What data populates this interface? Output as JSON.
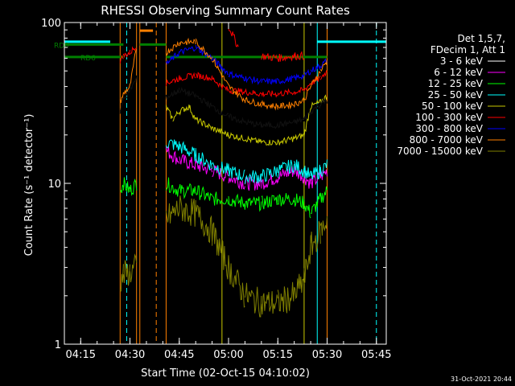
{
  "chart_data": {
    "type": "line",
    "title": "RHESSI Observing Summary Count Rates",
    "xlabel": "Start Time (02-Oct-15 04:10:02)",
    "ylabel": "Count Rate (s⁻¹ detector⁻¹)",
    "y_scale": "log",
    "ylim": [
      1,
      100
    ],
    "xlim": [
      "04:10:02",
      "05:48:00"
    ],
    "x_ticks": [
      "04:15",
      "04:30",
      "04:45",
      "05:00",
      "05:15",
      "05:30",
      "05:45"
    ],
    "y_ticks": [
      "1",
      "10",
      "100"
    ],
    "grid": false,
    "legend_position": "right",
    "legend_header": [
      "Det 1,5,7,",
      "FDecim 1, Att 1"
    ],
    "timestamp": "31-Oct-2021 20:44",
    "markers": [
      {
        "label": "RD0",
        "color": "#007f00",
        "y": 73
      },
      {
        "label": "RD6",
        "color": "#007f00",
        "y": 61
      },
      {
        "label": "",
        "color": "#00ffff",
        "y": 76
      },
      {
        "label": "",
        "color": "#ff8000",
        "y": 89
      }
    ],
    "series": [
      {
        "name": "3 - 6 keV",
        "color": "#000000",
        "x": [
          "04:27",
          "04:28",
          "04:30",
          "04:32",
          "04:41",
          "04:45",
          "04:50",
          "04:55",
          "05:00",
          "05:05",
          "05:10",
          "05:15",
          "05:20",
          "05:23",
          "05:25",
          "05:28",
          "05:30"
        ],
        "y": [
          28,
          33,
          38,
          45,
          34,
          38,
          35,
          30,
          26,
          24,
          23,
          23,
          24,
          25,
          28,
          31,
          33
        ]
      },
      {
        "name": "6 - 12 keV",
        "color": "#ff00ff",
        "x": [
          "04:41",
          "04:45",
          "04:50",
          "04:55",
          "05:00",
          "05:05",
          "05:10",
          "05:15",
          "05:20",
          "05:23",
          "05:25",
          "05:28",
          "05:30"
        ],
        "y": [
          16,
          14,
          13,
          12,
          11,
          10,
          10,
          11,
          12,
          11,
          10,
          11,
          12
        ]
      },
      {
        "name": "12 - 25 keV",
        "color": "#00ff00",
        "x": [
          "04:27",
          "04:28",
          "04:30",
          "04:32",
          "04:41",
          "04:45",
          "04:50",
          "04:55",
          "05:00",
          "05:05",
          "05:10",
          "05:15",
          "05:20",
          "05:23",
          "05:25",
          "05:28",
          "05:30"
        ],
        "y": [
          9,
          10,
          9,
          10,
          10,
          9,
          9,
          8,
          8,
          7.5,
          7.5,
          8,
          8,
          7.5,
          6.5,
          8,
          9
        ]
      },
      {
        "name": "25 - 50 keV",
        "color": "#00ffff",
        "x": [
          "04:41",
          "04:45",
          "04:50",
          "04:55",
          "05:00",
          "05:05",
          "05:10",
          "05:15",
          "05:20",
          "05:23",
          "05:25",
          "05:28",
          "05:30"
        ],
        "y": [
          18,
          17,
          15,
          13,
          12,
          11,
          11,
          12,
          13,
          12,
          11,
          12,
          13
        ]
      },
      {
        "name": "50 - 100 keV",
        "color": "#c8c800",
        "x": [
          "04:41",
          "04:43",
          "04:45",
          "04:48",
          "04:50",
          "04:55",
          "05:00",
          "05:05",
          "05:10",
          "05:15",
          "05:20",
          "05:23",
          "05:25",
          "05:28",
          "05:30"
        ],
        "y": [
          30,
          25,
          28,
          30,
          25,
          22,
          20,
          19,
          18,
          18,
          19,
          20,
          30,
          32,
          35
        ]
      },
      {
        "name": "100 - 300 keV",
        "color": "#ff0000",
        "x": [
          "04:27",
          "04:28",
          "04:30",
          "04:32",
          "04:41",
          "04:45",
          "04:50",
          "04:55",
          "04:58",
          "05:00",
          "05:05",
          "05:10",
          "05:15",
          "05:20",
          "05:23",
          "05:25",
          "05:28",
          "05:30"
        ],
        "y": [
          58,
          62,
          65,
          72,
          42,
          45,
          47,
          45,
          40,
          38,
          37,
          36,
          36,
          37,
          38,
          42,
          45,
          50
        ],
        "segments_high": {
          "x": [
            "05:00",
            "05:03",
            "05:10",
            "05:15",
            "05:20",
            "05:23"
          ],
          "y": [
            95,
            70,
            62,
            60,
            62,
            62
          ]
        }
      },
      {
        "name": "300 - 800 keV",
        "color": "#0000ff",
        "x": [
          "04:41",
          "04:45",
          "04:50",
          "04:55",
          "05:00",
          "05:05",
          "05:10",
          "05:15",
          "05:20",
          "05:23",
          "05:25",
          "05:28",
          "05:30"
        ],
        "y": [
          55,
          65,
          70,
          60,
          48,
          45,
          43,
          43,
          45,
          47,
          50,
          54,
          58
        ]
      },
      {
        "name": "800 - 7000 keV",
        "color": "#ff8000",
        "x": [
          "04:27",
          "04:28",
          "04:30",
          "04:32",
          "04:41",
          "04:45",
          "04:50",
          "04:55",
          "05:00",
          "05:05",
          "05:10",
          "05:15",
          "05:20",
          "05:23",
          "05:25",
          "05:28",
          "05:30"
        ],
        "y": [
          32,
          36,
          40,
          70,
          65,
          75,
          76,
          60,
          40,
          33,
          31,
          30,
          31,
          33,
          40,
          50,
          58
        ]
      },
      {
        "name": "7000 - 15000 keV",
        "color": "#7f7f00",
        "x": [
          "04:27",
          "04:28",
          "04:30",
          "04:32",
          "04:41",
          "04:45",
          "04:50",
          "04:55",
          "05:00",
          "05:05",
          "05:10",
          "05:15",
          "05:20",
          "05:23",
          "05:25",
          "05:28",
          "05:30"
        ],
        "y": [
          2.5,
          2.7,
          2.8,
          3.0,
          6,
          7,
          6.5,
          5,
          3,
          2,
          1.8,
          1.8,
          2,
          2.5,
          4,
          5,
          6
        ]
      }
    ],
    "vertical_lines": [
      {
        "color": "#ff8000",
        "style": "solid",
        "x": "04:27"
      },
      {
        "color": "#00ffff",
        "style": "dashed",
        "x": "04:29"
      },
      {
        "color": "#ff8000",
        "style": "solid",
        "x": "04:32"
      },
      {
        "color": "#ff8000",
        "style": "solid",
        "x": "04:33"
      },
      {
        "color": "#ff8000",
        "style": "dashed",
        "x": "04:38"
      },
      {
        "color": "#ff8000",
        "style": "solid",
        "x": "04:41"
      },
      {
        "color": "#c8c800",
        "style": "solid",
        "x": "04:58"
      },
      {
        "color": "#c8c800",
        "style": "solid",
        "x": "05:23"
      },
      {
        "color": "#00ffff",
        "style": "solid",
        "x": "05:27"
      },
      {
        "color": "#ff8000",
        "style": "solid",
        "x": "05:30"
      },
      {
        "color": "#00ffff",
        "style": "dashed",
        "x": "05:45"
      }
    ]
  }
}
